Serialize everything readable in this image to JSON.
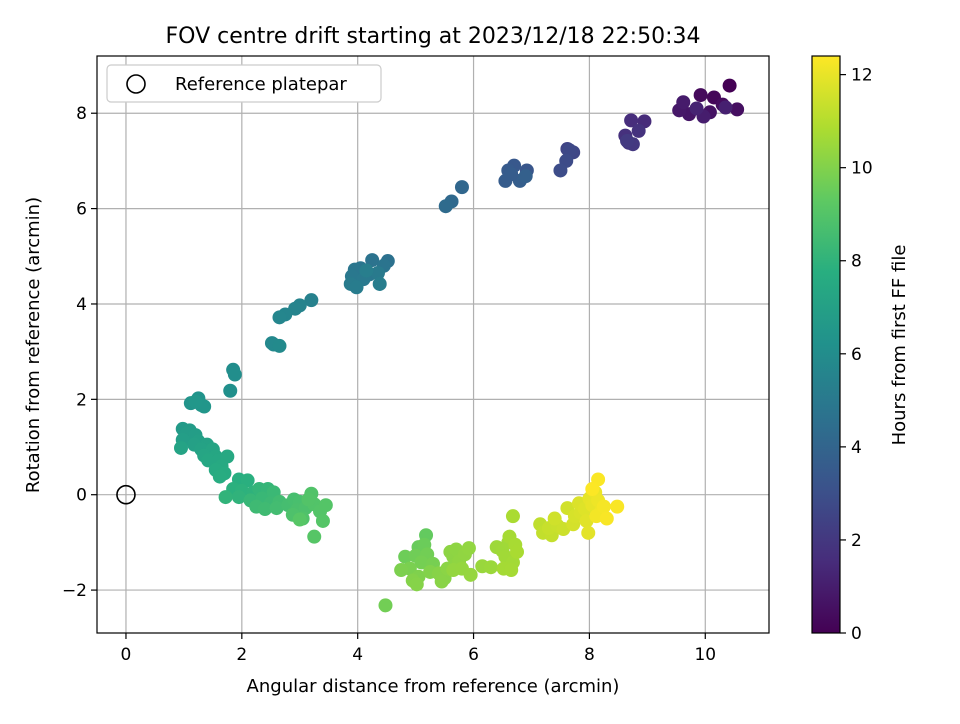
{
  "chart_data": {
    "type": "scatter",
    "title": "FOV centre drift starting at 2023/12/18 22:50:34",
    "xlabel": "Angular distance from reference (arcmin)",
    "ylabel": "Rotation from reference (arcmin)",
    "xlim": [
      -0.5,
      11.1
    ],
    "ylim": [
      -2.9,
      9.2
    ],
    "xticks": [
      0,
      2,
      4,
      6,
      8,
      10
    ],
    "yticks": [
      -2,
      0,
      2,
      4,
      6,
      8
    ],
    "grid": true,
    "legend": {
      "position": "top-left",
      "entries": [
        "Reference platepar"
      ]
    },
    "reference_point": {
      "x": 0,
      "y": 0
    },
    "colorbar": {
      "label": "Hours from first FF file",
      "colormap": "viridis",
      "range": [
        0,
        12.4
      ],
      "ticks": [
        0,
        2,
        4,
        6,
        8,
        10,
        12
      ]
    },
    "points": [
      {
        "x": 10.42,
        "y": 8.58,
        "c": 0.0
      },
      {
        "x": 10.15,
        "y": 8.33,
        "c": 0.2
      },
      {
        "x": 9.92,
        "y": 8.38,
        "c": 0.3
      },
      {
        "x": 10.3,
        "y": 8.18,
        "c": 0.4
      },
      {
        "x": 10.55,
        "y": 8.08,
        "c": 0.5
      },
      {
        "x": 10.08,
        "y": 8.02,
        "c": 0.6
      },
      {
        "x": 9.72,
        "y": 7.98,
        "c": 0.7
      },
      {
        "x": 9.55,
        "y": 8.06,
        "c": 0.8
      },
      {
        "x": 9.62,
        "y": 8.23,
        "c": 0.9
      },
      {
        "x": 9.97,
        "y": 7.93,
        "c": 1.0
      },
      {
        "x": 10.35,
        "y": 8.12,
        "c": 1.1
      },
      {
        "x": 9.85,
        "y": 8.1,
        "c": 1.2
      },
      {
        "x": 8.95,
        "y": 7.83,
        "c": 1.5
      },
      {
        "x": 8.72,
        "y": 7.85,
        "c": 1.6
      },
      {
        "x": 8.62,
        "y": 7.53,
        "c": 1.7
      },
      {
        "x": 8.85,
        "y": 7.63,
        "c": 1.8
      },
      {
        "x": 8.68,
        "y": 7.38,
        "c": 1.9
      },
      {
        "x": 8.75,
        "y": 7.35,
        "c": 2.0
      },
      {
        "x": 8.65,
        "y": 7.42,
        "c": 2.1
      },
      {
        "x": 7.62,
        "y": 7.25,
        "c": 2.5
      },
      {
        "x": 7.72,
        "y": 7.18,
        "c": 2.6
      },
      {
        "x": 7.66,
        "y": 7.22,
        "c": 2.7
      },
      {
        "x": 7.6,
        "y": 7.0,
        "c": 2.8
      },
      {
        "x": 7.5,
        "y": 6.8,
        "c": 2.9
      },
      {
        "x": 6.92,
        "y": 6.8,
        "c": 3.3
      },
      {
        "x": 6.7,
        "y": 6.9,
        "c": 3.4
      },
      {
        "x": 6.6,
        "y": 6.8,
        "c": 3.5
      },
      {
        "x": 6.55,
        "y": 6.58,
        "c": 3.6
      },
      {
        "x": 6.8,
        "y": 6.58,
        "c": 3.7
      },
      {
        "x": 6.9,
        "y": 6.68,
        "c": 3.8
      },
      {
        "x": 6.65,
        "y": 6.72,
        "c": 3.6
      },
      {
        "x": 5.8,
        "y": 6.45,
        "c": 4.1
      },
      {
        "x": 5.62,
        "y": 6.15,
        "c": 4.2
      },
      {
        "x": 5.52,
        "y": 6.05,
        "c": 4.3
      },
      {
        "x": 4.52,
        "y": 4.9,
        "c": 4.6
      },
      {
        "x": 4.25,
        "y": 4.92,
        "c": 4.7
      },
      {
        "x": 4.45,
        "y": 4.8,
        "c": 4.75
      },
      {
        "x": 4.05,
        "y": 4.75,
        "c": 4.8
      },
      {
        "x": 3.95,
        "y": 4.72,
        "c": 4.85
      },
      {
        "x": 4.2,
        "y": 4.62,
        "c": 4.9
      },
      {
        "x": 3.9,
        "y": 4.58,
        "c": 4.95
      },
      {
        "x": 4.1,
        "y": 4.52,
        "c": 5.0
      },
      {
        "x": 4.35,
        "y": 4.65,
        "c": 5.05
      },
      {
        "x": 3.88,
        "y": 4.42,
        "c": 5.1
      },
      {
        "x": 3.98,
        "y": 4.35,
        "c": 5.15
      },
      {
        "x": 4.38,
        "y": 4.42,
        "c": 5.2
      },
      {
        "x": 4.15,
        "y": 4.7,
        "c": 5.25
      },
      {
        "x": 3.2,
        "y": 4.08,
        "c": 5.4
      },
      {
        "x": 3.0,
        "y": 3.97,
        "c": 5.5
      },
      {
        "x": 2.92,
        "y": 3.9,
        "c": 5.55
      },
      {
        "x": 2.75,
        "y": 3.78,
        "c": 5.6
      },
      {
        "x": 2.65,
        "y": 3.72,
        "c": 5.65
      },
      {
        "x": 2.52,
        "y": 3.18,
        "c": 5.75
      },
      {
        "x": 2.55,
        "y": 3.15,
        "c": 5.8
      },
      {
        "x": 2.65,
        "y": 3.12,
        "c": 5.85
      },
      {
        "x": 1.85,
        "y": 2.62,
        "c": 6.0
      },
      {
        "x": 1.88,
        "y": 2.52,
        "c": 6.05
      },
      {
        "x": 1.8,
        "y": 2.18,
        "c": 6.15
      },
      {
        "x": 1.25,
        "y": 2.02,
        "c": 6.3
      },
      {
        "x": 1.12,
        "y": 1.92,
        "c": 6.35
      },
      {
        "x": 1.3,
        "y": 1.88,
        "c": 6.4
      },
      {
        "x": 1.35,
        "y": 1.85,
        "c": 6.45
      },
      {
        "x": 1.2,
        "y": 1.95,
        "c": 6.5
      },
      {
        "x": 0.98,
        "y": 1.38,
        "c": 6.7
      },
      {
        "x": 1.1,
        "y": 1.35,
        "c": 6.75
      },
      {
        "x": 1.05,
        "y": 1.28,
        "c": 6.8
      },
      {
        "x": 1.2,
        "y": 1.25,
        "c": 6.85
      },
      {
        "x": 0.98,
        "y": 1.15,
        "c": 6.9
      },
      {
        "x": 1.25,
        "y": 1.12,
        "c": 6.95
      },
      {
        "x": 1.18,
        "y": 1.05,
        "c": 7.0
      },
      {
        "x": 1.4,
        "y": 1.05,
        "c": 7.05
      },
      {
        "x": 1.3,
        "y": 0.95,
        "c": 7.1
      },
      {
        "x": 0.95,
        "y": 0.98,
        "c": 7.15
      },
      {
        "x": 1.5,
        "y": 0.95,
        "c": 7.2
      },
      {
        "x": 1.35,
        "y": 0.82,
        "c": 7.25
      },
      {
        "x": 1.55,
        "y": 0.8,
        "c": 7.3
      },
      {
        "x": 1.42,
        "y": 0.72,
        "c": 7.35
      },
      {
        "x": 1.6,
        "y": 0.72,
        "c": 7.4
      },
      {
        "x": 1.75,
        "y": 0.8,
        "c": 7.45
      },
      {
        "x": 1.65,
        "y": 0.6,
        "c": 7.5
      },
      {
        "x": 1.55,
        "y": 0.52,
        "c": 7.55
      },
      {
        "x": 1.7,
        "y": 0.45,
        "c": 7.6
      },
      {
        "x": 1.62,
        "y": 0.38,
        "c": 7.65
      },
      {
        "x": 1.95,
        "y": 0.32,
        "c": 7.75
      },
      {
        "x": 2.1,
        "y": 0.3,
        "c": 7.8
      },
      {
        "x": 1.85,
        "y": 0.12,
        "c": 7.85
      },
      {
        "x": 2.0,
        "y": 0.08,
        "c": 7.9
      },
      {
        "x": 2.2,
        "y": 0.05,
        "c": 7.95
      },
      {
        "x": 1.95,
        "y": -0.05,
        "c": 8.0
      },
      {
        "x": 1.72,
        "y": -0.05,
        "c": 8.05
      },
      {
        "x": 2.3,
        "y": 0.12,
        "c": 8.1
      },
      {
        "x": 2.45,
        "y": 0.12,
        "c": 8.15
      },
      {
        "x": 2.15,
        "y": -0.12,
        "c": 8.2
      },
      {
        "x": 2.35,
        "y": -0.08,
        "c": 8.25
      },
      {
        "x": 2.55,
        "y": 0.05,
        "c": 8.3
      },
      {
        "x": 2.5,
        "y": -0.18,
        "c": 8.35
      },
      {
        "x": 2.25,
        "y": -0.25,
        "c": 8.4
      },
      {
        "x": 2.4,
        "y": -0.3,
        "c": 8.45
      },
      {
        "x": 2.65,
        "y": -0.15,
        "c": 8.5
      },
      {
        "x": 2.6,
        "y": -0.28,
        "c": 8.55
      },
      {
        "x": 2.8,
        "y": -0.22,
        "c": 8.6
      },
      {
        "x": 2.9,
        "y": -0.1,
        "c": 8.65
      },
      {
        "x": 3.0,
        "y": -0.15,
        "c": 8.7
      },
      {
        "x": 2.95,
        "y": -0.32,
        "c": 8.75
      },
      {
        "x": 3.1,
        "y": -0.28,
        "c": 8.8
      },
      {
        "x": 2.88,
        "y": -0.42,
        "c": 8.85
      },
      {
        "x": 3.05,
        "y": -0.5,
        "c": 8.9
      },
      {
        "x": 3.2,
        "y": 0.02,
        "c": 8.92
      },
      {
        "x": 3.25,
        "y": -0.2,
        "c": 8.95
      },
      {
        "x": 3.15,
        "y": -0.1,
        "c": 8.97
      },
      {
        "x": 3.35,
        "y": -0.35,
        "c": 9.0
      },
      {
        "x": 3.45,
        "y": -0.22,
        "c": 9.02
      },
      {
        "x": 3.4,
        "y": -0.55,
        "c": 9.05
      },
      {
        "x": 3.25,
        "y": -0.88,
        "c": 9.08
      },
      {
        "x": 3.0,
        "y": -0.52,
        "c": 9.1
      },
      {
        "x": 5.18,
        "y": -0.85,
        "c": 9.4
      },
      {
        "x": 5.05,
        "y": -1.1,
        "c": 9.5
      },
      {
        "x": 5.15,
        "y": -1.05,
        "c": 9.55
      },
      {
        "x": 4.82,
        "y": -1.3,
        "c": 9.6
      },
      {
        "x": 5.0,
        "y": -1.28,
        "c": 9.65
      },
      {
        "x": 5.2,
        "y": -1.25,
        "c": 9.7
      },
      {
        "x": 5.1,
        "y": -1.42,
        "c": 9.75
      },
      {
        "x": 5.3,
        "y": -1.45,
        "c": 9.8
      },
      {
        "x": 4.9,
        "y": -1.55,
        "c": 9.85
      },
      {
        "x": 4.75,
        "y": -1.58,
        "c": 9.9
      },
      {
        "x": 5.05,
        "y": -1.72,
        "c": 9.95
      },
      {
        "x": 5.25,
        "y": -1.62,
        "c": 10.0
      },
      {
        "x": 4.95,
        "y": -1.8,
        "c": 10.05
      },
      {
        "x": 5.02,
        "y": -1.88,
        "c": 10.08
      },
      {
        "x": 5.4,
        "y": -1.65,
        "c": 10.1
      },
      {
        "x": 5.5,
        "y": -1.75,
        "c": 10.12
      },
      {
        "x": 5.45,
        "y": -1.82,
        "c": 10.15
      },
      {
        "x": 5.55,
        "y": -1.55,
        "c": 10.18
      },
      {
        "x": 5.65,
        "y": -1.3,
        "c": 10.2
      },
      {
        "x": 5.6,
        "y": -1.2,
        "c": 10.22
      },
      {
        "x": 5.7,
        "y": -1.15,
        "c": 10.25
      },
      {
        "x": 5.75,
        "y": -1.4,
        "c": 10.28
      },
      {
        "x": 5.85,
        "y": -1.25,
        "c": 10.3
      },
      {
        "x": 5.92,
        "y": -1.12,
        "c": 10.32
      },
      {
        "x": 5.65,
        "y": -1.58,
        "c": 10.35
      },
      {
        "x": 5.8,
        "y": -1.55,
        "c": 10.38
      },
      {
        "x": 5.95,
        "y": -1.68,
        "c": 10.4
      },
      {
        "x": 6.15,
        "y": -1.5,
        "c": 10.45
      },
      {
        "x": 6.3,
        "y": -1.52,
        "c": 10.5
      },
      {
        "x": 6.4,
        "y": -1.1,
        "c": 10.55
      },
      {
        "x": 6.5,
        "y": -1.18,
        "c": 10.58
      },
      {
        "x": 6.6,
        "y": -1.0,
        "c": 10.6
      },
      {
        "x": 6.55,
        "y": -1.3,
        "c": 10.62
      },
      {
        "x": 6.68,
        "y": -1.42,
        "c": 10.65
      },
      {
        "x": 6.52,
        "y": -1.55,
        "c": 10.68
      },
      {
        "x": 6.65,
        "y": -1.58,
        "c": 10.7
      },
      {
        "x": 6.62,
        "y": -0.88,
        "c": 10.72
      },
      {
        "x": 6.72,
        "y": -1.05,
        "c": 10.75
      },
      {
        "x": 6.75,
        "y": -1.2,
        "c": 10.78
      },
      {
        "x": 6.68,
        "y": -0.45,
        "c": 10.8
      },
      {
        "x": 4.48,
        "y": -2.32,
        "c": 9.7
      },
      {
        "x": 7.15,
        "y": -0.62,
        "c": 11.2
      },
      {
        "x": 7.2,
        "y": -0.8,
        "c": 11.25
      },
      {
        "x": 7.35,
        "y": -0.85,
        "c": 11.3
      },
      {
        "x": 7.3,
        "y": -0.7,
        "c": 11.35
      },
      {
        "x": 7.45,
        "y": -0.65,
        "c": 11.4
      },
      {
        "x": 7.55,
        "y": -0.72,
        "c": 11.45
      },
      {
        "x": 7.4,
        "y": -0.5,
        "c": 11.5
      },
      {
        "x": 7.62,
        "y": -0.28,
        "c": 11.55
      },
      {
        "x": 7.72,
        "y": -0.62,
        "c": 11.6
      },
      {
        "x": 7.75,
        "y": -0.45,
        "c": 11.65
      },
      {
        "x": 7.85,
        "y": -0.38,
        "c": 11.7
      },
      {
        "x": 7.82,
        "y": -0.18,
        "c": 11.75
      },
      {
        "x": 7.92,
        "y": -0.3,
        "c": 11.8
      },
      {
        "x": 7.95,
        "y": -0.55,
        "c": 11.85
      },
      {
        "x": 7.98,
        "y": -0.8,
        "c": 11.9
      },
      {
        "x": 8.0,
        "y": -0.08,
        "c": 11.95
      },
      {
        "x": 8.05,
        "y": -0.22,
        "c": 12.0
      },
      {
        "x": 8.1,
        "y": 0.05,
        "c": 12.05
      },
      {
        "x": 8.15,
        "y": -0.12,
        "c": 12.1
      },
      {
        "x": 8.2,
        "y": -0.35,
        "c": 12.15
      },
      {
        "x": 8.12,
        "y": -0.45,
        "c": 12.2
      },
      {
        "x": 8.25,
        "y": -0.25,
        "c": 12.25
      },
      {
        "x": 8.3,
        "y": -0.5,
        "c": 12.3
      },
      {
        "x": 8.48,
        "y": -0.25,
        "c": 12.32
      },
      {
        "x": 8.15,
        "y": 0.32,
        "c": 12.35
      },
      {
        "x": 8.05,
        "y": 0.12,
        "c": 12.38
      }
    ]
  }
}
